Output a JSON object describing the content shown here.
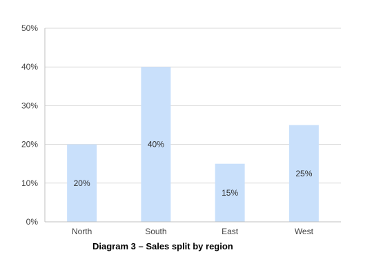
{
  "chart_data": {
    "type": "bar",
    "categories": [
      "North",
      "South",
      "East",
      "West"
    ],
    "values": [
      20,
      40,
      15,
      25
    ],
    "value_format": "percent",
    "ylim": [
      0,
      50
    ],
    "yticks": [
      0,
      10,
      20,
      30,
      40,
      50
    ],
    "grid": true,
    "legend": "none",
    "bar_color": "#c9e0fb",
    "caption": "Diagram 3 – Sales split by region"
  }
}
